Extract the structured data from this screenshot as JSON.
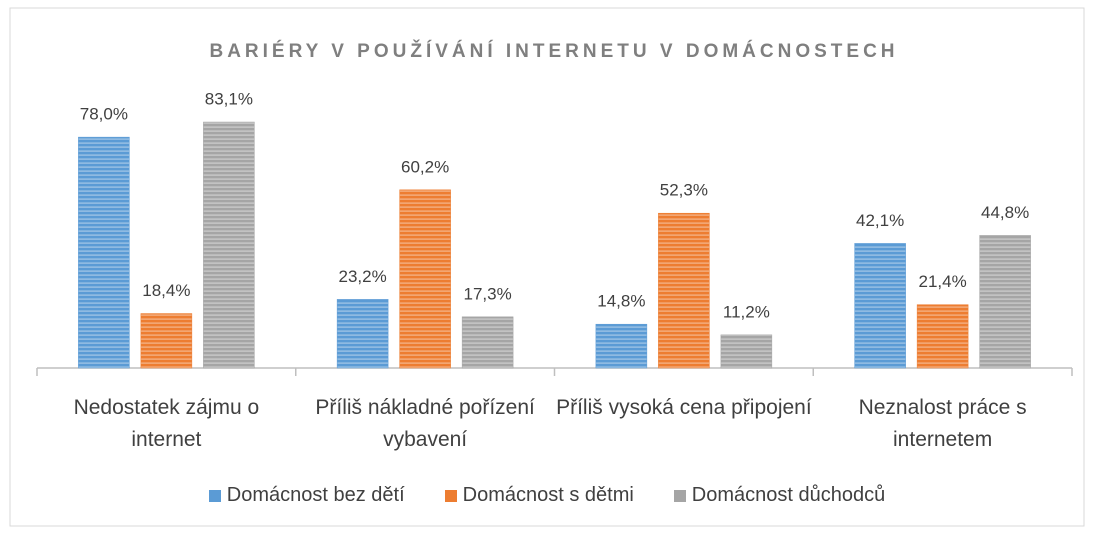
{
  "chart_data": {
    "type": "bar",
    "title": "BARIÉRY V POUŽÍVÁNÍ INTERNETU V DOMÁCNOSTECH",
    "categories": [
      "Nedostatek zájmu o internet",
      "Příliš nákladné pořízení vybavení",
      "Příliš vysoká cena připojení",
      "Neznalost práce s internetem"
    ],
    "series": [
      {
        "name": "Domácnost bez dětí",
        "color": "#5b9bd5",
        "values": [
          78.0,
          23.2,
          14.8,
          42.1
        ],
        "value_labels": [
          "78,0%",
          "23,2%",
          "14,8%",
          "42,1%"
        ]
      },
      {
        "name": "Domácnost s dětmi",
        "color": "#ed7d31",
        "values": [
          18.4,
          60.2,
          52.3,
          21.4
        ],
        "value_labels": [
          "18,4%",
          "60,2%",
          "52,3%",
          "21,4%"
        ]
      },
      {
        "name": "Domácnost důchodců",
        "color": "#a5a5a5",
        "values": [
          83.1,
          17.3,
          11.2,
          44.8
        ],
        "value_labels": [
          "83,1%",
          "17,3%",
          "11,2%",
          "44,8%"
        ]
      }
    ],
    "legend": "bottom"
  }
}
